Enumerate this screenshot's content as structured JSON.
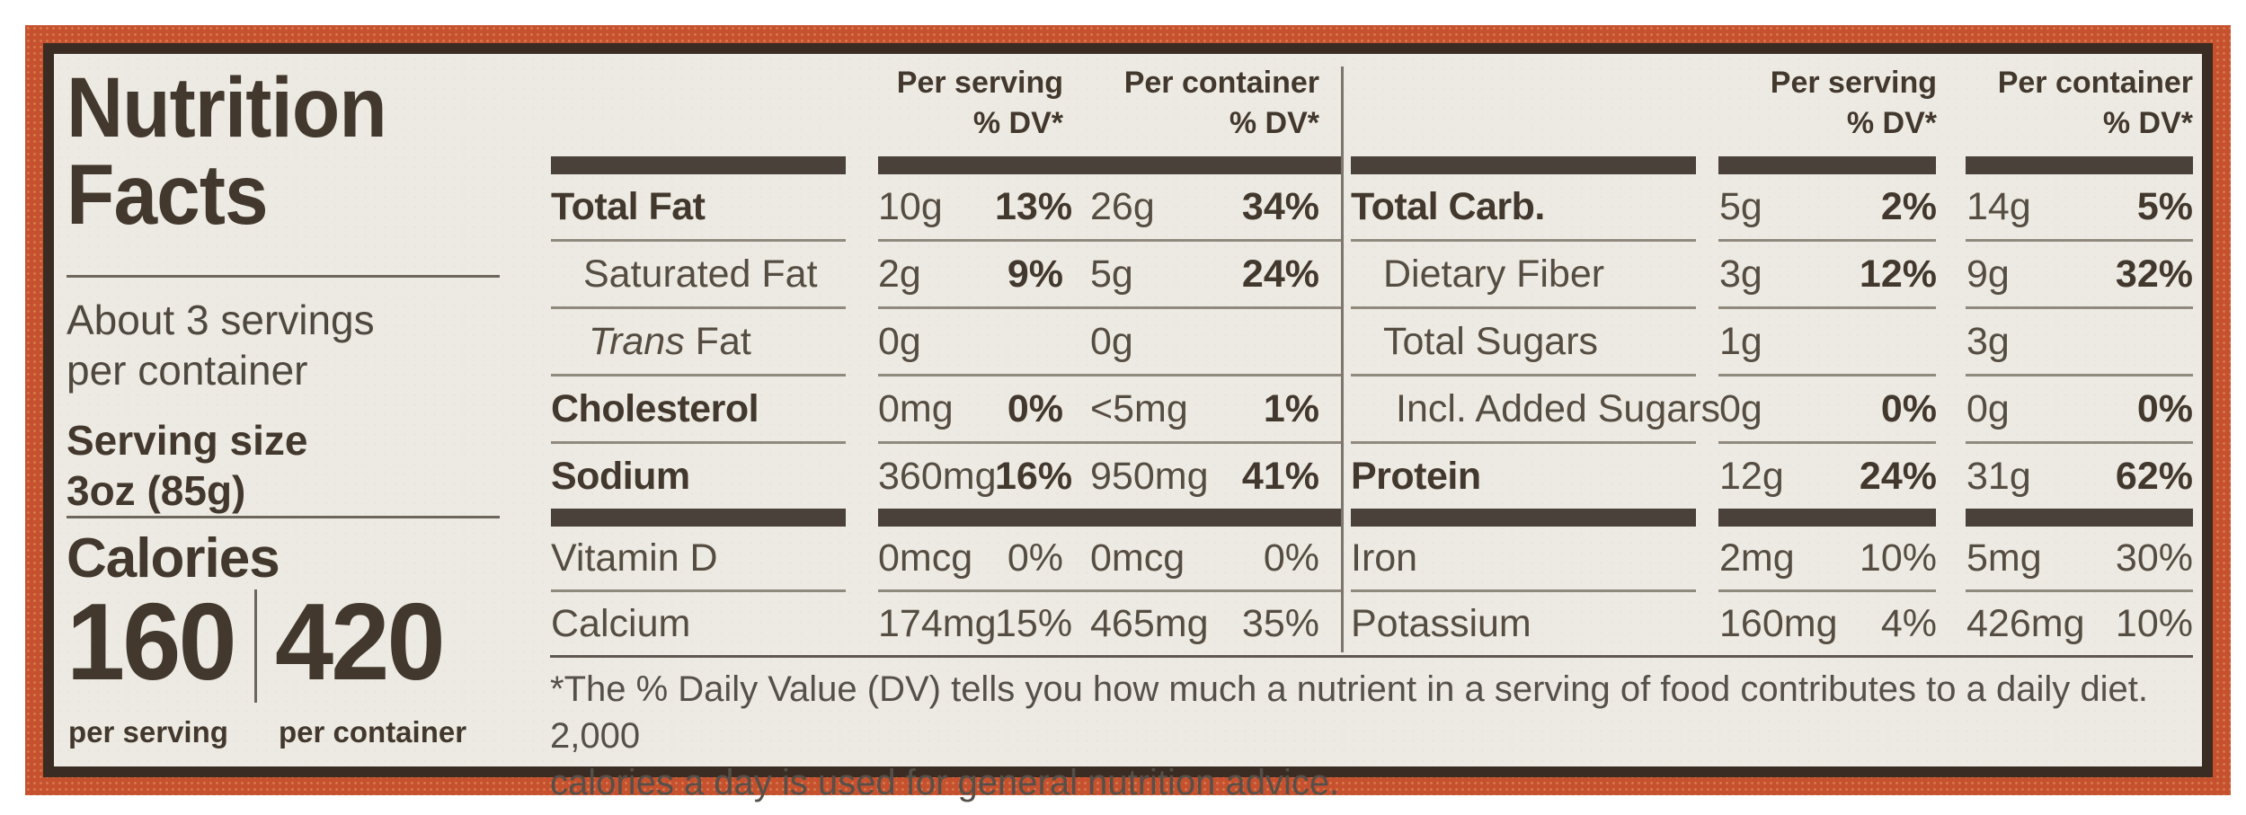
{
  "label": {
    "title_line1": "Nutrition",
    "title_line2": "Facts",
    "servings_line1": "About 3 servings",
    "servings_line2": "per container",
    "serving_size_label": "Serving size",
    "serving_size_value": "3oz (85g)",
    "calories_label": "Calories",
    "calories_per_serving": "160",
    "calories_per_container": "420",
    "per_serving_caption": "per serving",
    "per_container_caption": "per container"
  },
  "columns": {
    "per_serving": "Per serving",
    "per_container": "Per container",
    "dv": "% DV*"
  },
  "tables": [
    {
      "id": "left-nutrient-columns",
      "rows": [
        {
          "label": "Total Fat",
          "style": "main",
          "s_amt": "10g",
          "s_dv": "13%",
          "c_amt": "26g",
          "c_dv": "34%"
        },
        {
          "label": "Saturated Fat",
          "style": "sub",
          "s_amt": "2g",
          "s_dv": "9%",
          "c_amt": "5g",
          "c_dv": "24%"
        },
        {
          "label": "Trans Fat",
          "style": "sub-italic",
          "s_amt": "0g",
          "s_dv": "",
          "c_amt": "0g",
          "c_dv": ""
        },
        {
          "label": "Cholesterol",
          "style": "main",
          "s_amt": "0mg",
          "s_dv": "0%",
          "c_amt": "<5mg",
          "c_dv": "1%"
        },
        {
          "label": "Sodium",
          "style": "main",
          "s_amt": "360mg",
          "s_dv": "16%",
          "c_amt": "950mg",
          "c_dv": "41%"
        }
      ],
      "micro_rows": [
        {
          "label": "Vitamin D",
          "s_amt": "0mcg",
          "s_dv": "0%",
          "c_amt": "0mcg",
          "c_dv": "0%"
        },
        {
          "label": "Calcium",
          "s_amt": "174mg",
          "s_dv": "15%",
          "c_amt": "465mg",
          "c_dv": "35%"
        }
      ]
    },
    {
      "id": "right-nutrient-columns",
      "rows": [
        {
          "label": "Total Carb.",
          "style": "main",
          "s_amt": "5g",
          "s_dv": "2%",
          "c_amt": "14g",
          "c_dv": "5%"
        },
        {
          "label": "Dietary Fiber",
          "style": "sub",
          "s_amt": "3g",
          "s_dv": "12%",
          "c_amt": "9g",
          "c_dv": "32%"
        },
        {
          "label": "Total Sugars",
          "style": "sub",
          "s_amt": "1g",
          "s_dv": "",
          "c_amt": "3g",
          "c_dv": ""
        },
        {
          "label": "Incl. Added Sugars",
          "style": "sub2",
          "s_amt": "0g",
          "s_dv": "0%",
          "c_amt": "0g",
          "c_dv": "0%"
        },
        {
          "label": "Protein",
          "style": "main",
          "s_amt": "12g",
          "s_dv": "24%",
          "c_amt": "31g",
          "c_dv": "62%"
        }
      ],
      "micro_rows": [
        {
          "label": "Iron",
          "s_amt": "2mg",
          "s_dv": "10%",
          "c_amt": "5mg",
          "c_dv": "30%"
        },
        {
          "label": "Potassium",
          "s_amt": "160mg",
          "s_dv": "4%",
          "c_amt": "426mg",
          "c_dv": "10%"
        }
      ]
    }
  ],
  "footnote": {
    "line1": "*The % Daily Value (DV) tells you how much a nutrient in a serving of food contributes to a daily diet. 2,000",
    "line2": "calories a day is used for general nutrition advice."
  },
  "colors": {
    "border_orange": "#c5512e",
    "border_dark": "#3b2c23",
    "panel_background": "#edeae3",
    "text_dark": "#42382d",
    "text_gray": "#554d42"
  }
}
